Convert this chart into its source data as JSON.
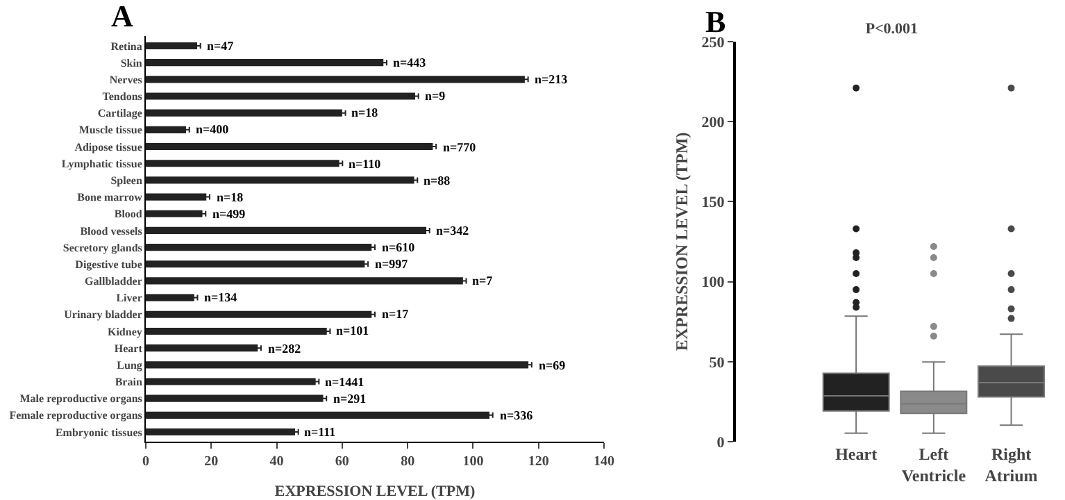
{
  "chart_data": [
    {
      "type": "bar",
      "orientation": "horizontal",
      "xlabel": "EXPRESSION LEVEL (TPM)",
      "categories": [
        "Retina",
        "Skin",
        "Nerves",
        "Tendons",
        "Cartilage",
        "Muscle tissue",
        "Adipose tissue",
        "Lymphatic tissue",
        "Spleen",
        "Bone marrow",
        "Blood",
        "Blood vessels",
        "Secretory glands",
        "Digestive tube",
        "Gallbladder",
        "Liver",
        "Urinary bladder",
        "Kidney",
        "Heart",
        "Lung",
        "Brain",
        "Male reproductive organs",
        "Female reproductive organs",
        "Embryonic tissues"
      ],
      "values": [
        15.7,
        72.6,
        115.8,
        82.3,
        60,
        12.3,
        87.7,
        59.1,
        82,
        18.5,
        17.3,
        85.7,
        69,
        66.9,
        96.9,
        14.8,
        69,
        55.3,
        34.2,
        116.9,
        51.9,
        54.2,
        105,
        45.6
      ],
      "errors": [
        1,
        1,
        1,
        1,
        1,
        1,
        1,
        1,
        1,
        1,
        1,
        1,
        1,
        1,
        1,
        1,
        1,
        1,
        1,
        1,
        1,
        1,
        1,
        1
      ],
      "annotations": [
        "A",
        {
          "text": "n=47",
          "x": 15.7,
          "y": "Retina"
        },
        {
          "text": "n=443",
          "x": 72.6,
          "y": "Skin"
        },
        {
          "text": "n=213",
          "x": 115.8,
          "y": "Nerves"
        },
        {
          "text": "n=9",
          "x": 82.3,
          "y": "Tendons"
        },
        {
          "text": "n=18",
          "x": 60,
          "y": "Cartilage"
        },
        {
          "text": "n=400",
          "x": 12.3,
          "y": "Muscle tissue"
        },
        {
          "text": "n=770",
          "x": 87.7,
          "y": "Adipose tissue"
        },
        {
          "text": "n=110",
          "x": 59.1,
          "y": "Lymphatic tissue"
        },
        {
          "text": "n=88",
          "x": 82,
          "y": "Spleen"
        },
        {
          "text": "n=18",
          "x": 18.5,
          "y": "Bone marrow"
        },
        {
          "text": "n=499",
          "x": 17.3,
          "y": "Blood"
        },
        {
          "text": "n=342",
          "x": 85.7,
          "y": "Blood vessels"
        },
        {
          "text": "n=610",
          "x": 69,
          "y": "Secretory glands"
        },
        {
          "text": "n=997",
          "x": 66.9,
          "y": "Digestive tube"
        },
        {
          "text": "n=7",
          "x": 96.9,
          "y": "Gallbladder"
        },
        {
          "text": "n=134",
          "x": 14.8,
          "y": "Liver"
        },
        {
          "text": "n=17",
          "x": 69,
          "y": "Urinary bladder"
        },
        {
          "text": "n=101",
          "x": 55.3,
          "y": "Kidney"
        },
        {
          "text": "n=282",
          "x": 34.2,
          "y": "Heart"
        },
        {
          "text": "n=69",
          "x": 116.9,
          "y": "Lung"
        },
        {
          "text": "n=1441",
          "x": 51.9,
          "y": "Brain"
        },
        {
          "text": "n=291",
          "x": 54.2,
          "y": "Male reproductive organs"
        },
        {
          "text": "n=336",
          "x": 105,
          "y": "Female reproductive organs"
        },
        {
          "text": "n=111",
          "x": 45.6,
          "y": "Embryonic tissues"
        }
      ],
      "color": "#222222",
      "xlim": [
        0,
        140
      ],
      "xticks": [
        0,
        20,
        40,
        60,
        80,
        100,
        120,
        140
      ]
    },
    {
      "type": "box",
      "title": "P<0.001",
      "ylabel": "EXPRESSION LEVEL (TPM)",
      "annotations": [
        "B"
      ],
      "categories": [
        "Heart",
        "Left Ventricle",
        "Right Atrium"
      ],
      "colors": [
        "#222222",
        "#8a8a8a",
        "#4a4a4a"
      ],
      "boxes": [
        {
          "low": 5.3,
          "q1": 19.2,
          "median": 28.6,
          "q3": 42.7,
          "high": 78.4,
          "outliers": [
            84,
            87,
            95,
            105,
            115,
            118,
            133,
            221
          ]
        },
        {
          "low": 5.3,
          "q1": 17.7,
          "median": 23.6,
          "q3": 31.5,
          "high": 49.8,
          "outliers": [
            66,
            72,
            105,
            115,
            122
          ]
        },
        {
          "low": 10.3,
          "q1": 28,
          "median": 36.9,
          "q3": 47.2,
          "high": 67.2,
          "outliers": [
            77,
            83,
            95,
            105,
            133,
            221
          ]
        }
      ],
      "ylim": [
        0,
        250
      ],
      "yticks": [
        0,
        50,
        100,
        150,
        200,
        250
      ]
    }
  ]
}
